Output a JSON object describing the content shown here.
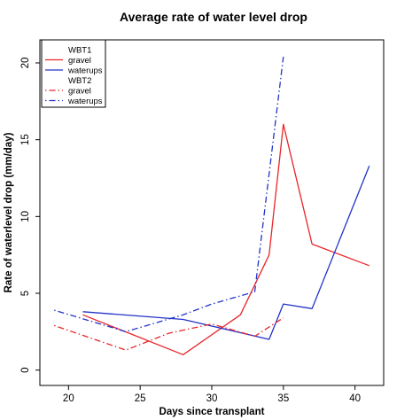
{
  "chart_data": {
    "type": "line",
    "title": "Average rate of water level drop",
    "xlabel": "Days since transplant",
    "ylabel": "Rate of waterlevel drop (mm/day)",
    "xlim": [
      18,
      42
    ],
    "ylim": [
      0,
      21
    ],
    "x_ticks": [
      20,
      25,
      30,
      35,
      40
    ],
    "y_ticks": [
      0,
      5,
      10,
      15,
      20
    ],
    "grid": false,
    "legend_position": "top-left",
    "legend": [
      {
        "kind": "header",
        "label": "WBT1"
      },
      {
        "kind": "series",
        "series_index": 0,
        "label": "gravel"
      },
      {
        "kind": "series",
        "series_index": 1,
        "label": "waterups"
      },
      {
        "kind": "header",
        "label": "WBT2"
      },
      {
        "kind": "series",
        "series_index": 2,
        "label": "gravel"
      },
      {
        "kind": "series",
        "series_index": 3,
        "label": "waterups"
      }
    ],
    "series": [
      {
        "name": "gravel",
        "group": "WBT1",
        "color": "#e8252a",
        "dash": "solid",
        "points": [
          [
            21,
            3.6
          ],
          [
            28,
            1.0
          ],
          [
            32,
            3.6
          ],
          [
            34,
            7.5
          ],
          [
            35,
            16.0
          ],
          [
            37,
            8.2
          ],
          [
            41,
            6.8
          ]
        ]
      },
      {
        "name": "waterups",
        "group": "WBT1",
        "color": "#2233c8",
        "dash": "solid",
        "points": [
          [
            21,
            3.8
          ],
          [
            28,
            3.3
          ],
          [
            34,
            2.0
          ],
          [
            35,
            4.3
          ],
          [
            37,
            4.0
          ],
          [
            41,
            13.3
          ]
        ]
      },
      {
        "name": "gravel",
        "group": "WBT2",
        "color": "#e8252a",
        "dash": "dotdash",
        "points": [
          [
            19,
            2.9
          ],
          [
            24,
            1.3
          ],
          [
            27,
            2.4
          ],
          [
            30,
            3.0
          ],
          [
            33,
            2.2
          ],
          [
            35,
            3.4
          ]
        ]
      },
      {
        "name": "waterups",
        "group": "WBT2",
        "color": "#2233c8",
        "dash": "dotdash",
        "points": [
          [
            19,
            3.9
          ],
          [
            24,
            2.5
          ],
          [
            28,
            3.6
          ],
          [
            30,
            4.3
          ],
          [
            33,
            5.1
          ],
          [
            35,
            20.4
          ]
        ]
      }
    ]
  }
}
